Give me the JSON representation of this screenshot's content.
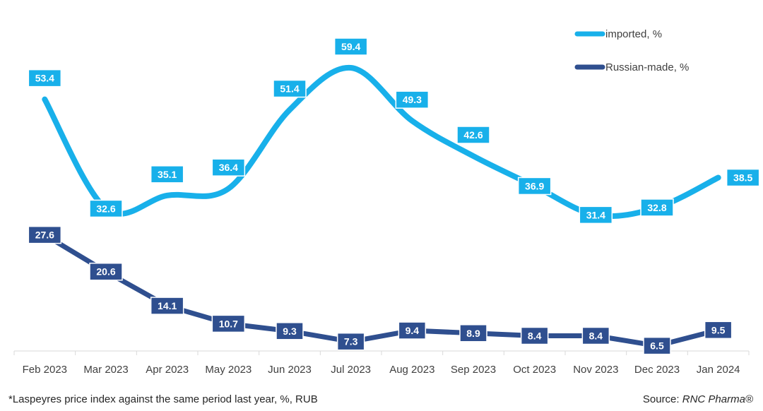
{
  "chart_data": {
    "type": "line",
    "categories": [
      "Feb 2023",
      "Mar 2023",
      "Apr 2023",
      "May 2023",
      "Jun 2023",
      "Jul 2023",
      "Aug 2023",
      "Sep 2023",
      "Oct 2023",
      "Nov 2023",
      "Dec 2023",
      "Jan 2024"
    ],
    "series": [
      {
        "name": "imported, %",
        "color": "#18b0ea",
        "values": [
          53.4,
          32.6,
          35.1,
          36.4,
          51.4,
          59.4,
          49.3,
          42.6,
          36.9,
          31.4,
          32.8,
          38.5
        ],
        "labels": [
          "53.4",
          "32.6",
          "35.1",
          "36.4",
          "51.4",
          "59.4",
          "49.3",
          "42.6",
          "36.9",
          "31.4",
          "32.8",
          "38.5"
        ],
        "smooth": true
      },
      {
        "name": "Russian-made, %",
        "color": "#2f4f8f",
        "values": [
          27.6,
          20.6,
          14.1,
          10.7,
          9.3,
          7.3,
          9.4,
          8.9,
          8.4,
          8.4,
          6.5,
          9.5
        ],
        "labels": [
          "27.6",
          "20.6",
          "14.1",
          "10.7",
          "9.3",
          "7.3",
          "9.4",
          "8.9",
          "8.4",
          "8.4",
          "6.5",
          "9.5"
        ],
        "smooth": false
      }
    ],
    "ylim": [
      0,
      60
    ],
    "grid": false,
    "legend": "top-right",
    "title": "",
    "xlabel": "",
    "ylabel": ""
  },
  "footnote": "*Laspeyres price index against the same period last year, %, RUB",
  "source_prefix": "Source: ",
  "source_brand": "RNC Pharma®"
}
